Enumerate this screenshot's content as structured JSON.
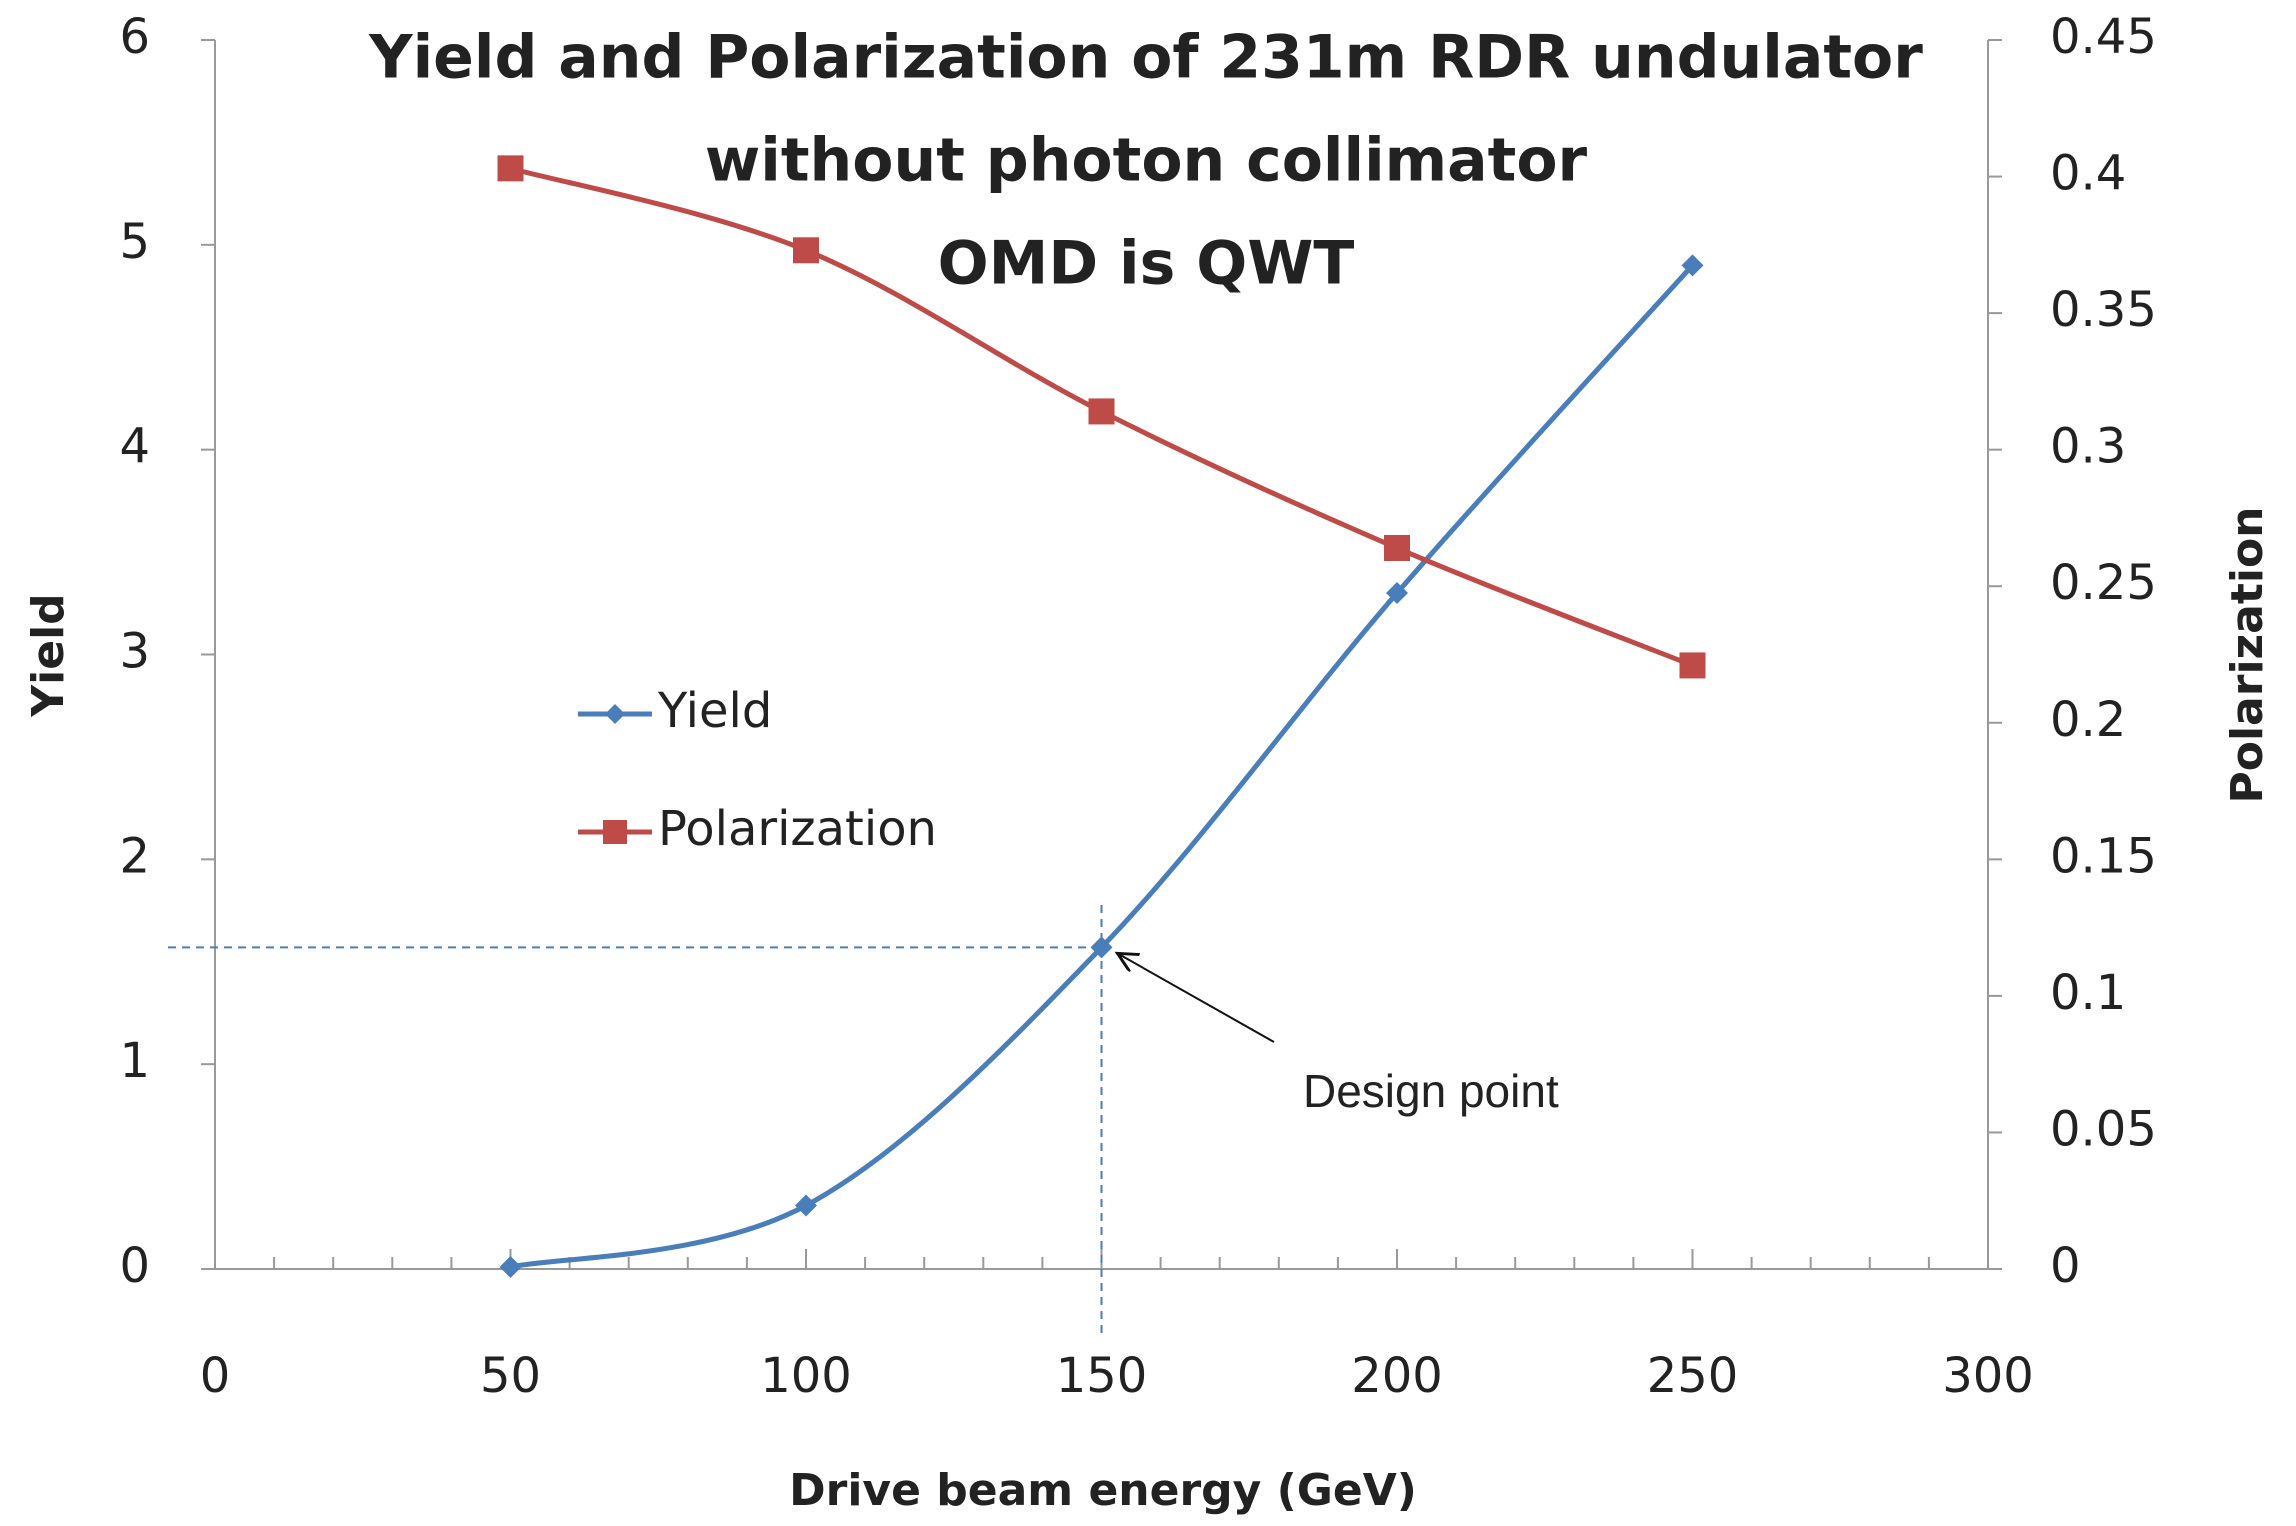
{
  "chart_data": {
    "type": "line",
    "title": [
      "Yield and Polarization of 231m RDR undulator",
      "without photon collimator",
      "OMD is QWT"
    ],
    "x_label": "Drive beam energy (GeV)",
    "y_label": "Yield",
    "y2_label": "Polarization",
    "x": [
      50,
      100,
      150,
      200,
      250
    ],
    "series": [
      {
        "name": "Yield",
        "color": "#4a7ebb",
        "values": [
          0.01,
          0.31,
          1.57,
          3.3,
          4.9
        ]
      },
      {
        "name": "Polarization",
        "color": "#be4b48",
        "axis": "y2",
        "values": [
          0.403,
          0.373,
          0.314,
          0.264,
          0.221
        ]
      }
    ],
    "xlim": [
      0,
      300
    ],
    "xticks": [
      0,
      50,
      100,
      150,
      200,
      250,
      300
    ],
    "ylim": [
      0,
      6
    ],
    "yticks": [
      0,
      1,
      2,
      3,
      4,
      5,
      6
    ],
    "y2lim": [
      0,
      0.45
    ],
    "y2ticks": [
      0,
      0.05,
      0.1,
      0.15,
      0.2,
      0.25,
      0.3,
      0.35,
      0.4,
      0.45
    ],
    "grid": false,
    "legend": "left",
    "annotation": "Design point"
  }
}
